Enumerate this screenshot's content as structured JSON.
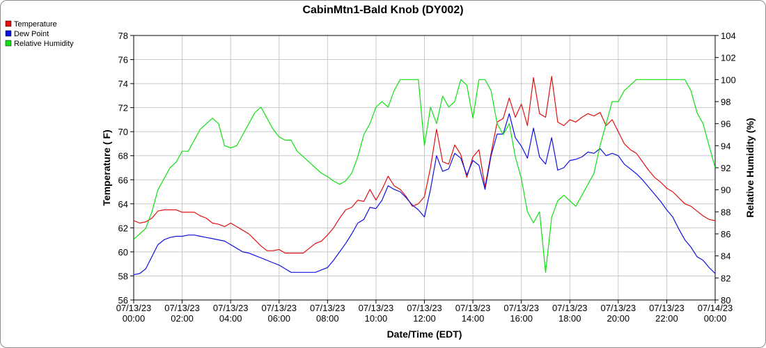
{
  "chart_data": {
    "type": "line",
    "title": "CabinMtn1-Bald Knob (DY002)",
    "xlabel": "Date/Time (EDT)",
    "ylabel": "Temperature ( F)",
    "y2label": "Relative Humidity (%)",
    "ylim": [
      56,
      78
    ],
    "y2lim": [
      80,
      104
    ],
    "yticks": [
      "56",
      "58",
      "60",
      "62",
      "64",
      "66",
      "68",
      "70",
      "72",
      "74",
      "76",
      "78"
    ],
    "y2ticks": [
      "80",
      "82",
      "84",
      "86",
      "88",
      "90",
      "92",
      "94",
      "96",
      "98",
      "100",
      "102",
      "104"
    ],
    "xlim": [
      0,
      24
    ],
    "xticks": [
      {
        "hour": 0,
        "date": "07/13/23",
        "time": "00:00"
      },
      {
        "hour": 2,
        "date": "07/13/23",
        "time": "02:00"
      },
      {
        "hour": 4,
        "date": "07/13/23",
        "time": "04:00"
      },
      {
        "hour": 6,
        "date": "07/13/23",
        "time": "06:00"
      },
      {
        "hour": 8,
        "date": "07/13/23",
        "time": "08:00"
      },
      {
        "hour": 10,
        "date": "07/13/23",
        "time": "10:00"
      },
      {
        "hour": 12,
        "date": "07/13/23",
        "time": "12:00"
      },
      {
        "hour": 14,
        "date": "07/13/23",
        "time": "14:00"
      },
      {
        "hour": 16,
        "date": "07/13/23",
        "time": "16:00"
      },
      {
        "hour": 18,
        "date": "07/13/23",
        "time": "18:00"
      },
      {
        "hour": 20,
        "date": "07/13/23",
        "time": "20:00"
      },
      {
        "hour": 22,
        "date": "07/13/23",
        "time": "22:00"
      },
      {
        "hour": 24,
        "date": "07/14/23",
        "time": "00:00"
      }
    ],
    "grid": true,
    "legend_position": "top-left",
    "series": [
      {
        "name": "Temperature",
        "color": "#e01010",
        "axis": "left",
        "points": [
          [
            0,
            62.6
          ],
          [
            0.25,
            62.4
          ],
          [
            0.5,
            62.5
          ],
          [
            0.75,
            62.8
          ],
          [
            1,
            63.4
          ],
          [
            1.25,
            63.5
          ],
          [
            1.5,
            63.5
          ],
          [
            1.75,
            63.5
          ],
          [
            2,
            63.3
          ],
          [
            2.25,
            63.3
          ],
          [
            2.5,
            63.3
          ],
          [
            2.75,
            63.0
          ],
          [
            3,
            62.8
          ],
          [
            3.25,
            62.4
          ],
          [
            3.5,
            62.3
          ],
          [
            3.75,
            62.1
          ],
          [
            4,
            62.4
          ],
          [
            4.25,
            62.1
          ],
          [
            4.5,
            61.8
          ],
          [
            4.75,
            61.5
          ],
          [
            5,
            61.0
          ],
          [
            5.25,
            60.5
          ],
          [
            5.5,
            60.1
          ],
          [
            5.75,
            60.1
          ],
          [
            6,
            60.2
          ],
          [
            6.25,
            59.9
          ],
          [
            6.5,
            59.9
          ],
          [
            6.75,
            59.9
          ],
          [
            7,
            59.9
          ],
          [
            7.25,
            60.3
          ],
          [
            7.5,
            60.7
          ],
          [
            7.75,
            60.9
          ],
          [
            8,
            61.4
          ],
          [
            8.25,
            62.0
          ],
          [
            8.5,
            62.8
          ],
          [
            8.75,
            63.5
          ],
          [
            9,
            63.7
          ],
          [
            9.25,
            64.3
          ],
          [
            9.5,
            64.2
          ],
          [
            9.75,
            65.2
          ],
          [
            10,
            64.3
          ],
          [
            10.25,
            65.2
          ],
          [
            10.5,
            66.3
          ],
          [
            10.75,
            65.5
          ],
          [
            11,
            65.2
          ],
          [
            11.25,
            64.6
          ],
          [
            11.5,
            63.8
          ],
          [
            11.75,
            64.0
          ],
          [
            12,
            64.6
          ],
          [
            12.25,
            67.0
          ],
          [
            12.5,
            70.2
          ],
          [
            12.75,
            67.5
          ],
          [
            13,
            67.3
          ],
          [
            13.25,
            68.9
          ],
          [
            13.5,
            68.1
          ],
          [
            13.75,
            66.2
          ],
          [
            14,
            67.9
          ],
          [
            14.25,
            68.5
          ],
          [
            14.5,
            65.4
          ],
          [
            14.75,
            68.2
          ],
          [
            15,
            70.8
          ],
          [
            15.25,
            71.1
          ],
          [
            15.5,
            72.8
          ],
          [
            15.75,
            71.2
          ],
          [
            16,
            72.3
          ],
          [
            16.25,
            70.5
          ],
          [
            16.5,
            74.5
          ],
          [
            16.75,
            71.5
          ],
          [
            17,
            71.2
          ],
          [
            17.25,
            74.6
          ],
          [
            17.5,
            70.8
          ],
          [
            17.75,
            70.5
          ],
          [
            18,
            71.0
          ],
          [
            18.25,
            70.8
          ],
          [
            18.5,
            71.2
          ],
          [
            18.75,
            71.5
          ],
          [
            19,
            71.3
          ],
          [
            19.25,
            71.6
          ],
          [
            19.5,
            70.5
          ],
          [
            19.75,
            71.0
          ],
          [
            20,
            70.0
          ],
          [
            20.25,
            69.0
          ],
          [
            20.5,
            68.5
          ],
          [
            20.75,
            68.2
          ],
          [
            21,
            67.5
          ],
          [
            21.25,
            66.8
          ],
          [
            21.5,
            66.2
          ],
          [
            21.75,
            65.8
          ],
          [
            22,
            65.3
          ],
          [
            22.25,
            65.0
          ],
          [
            22.5,
            64.5
          ],
          [
            22.75,
            64.0
          ],
          [
            23,
            63.8
          ],
          [
            23.25,
            63.4
          ],
          [
            23.5,
            63.0
          ],
          [
            23.75,
            62.7
          ],
          [
            24,
            62.6
          ]
        ]
      },
      {
        "name": "Dew Point",
        "color": "#1010e0",
        "axis": "left",
        "points": [
          [
            0,
            58.1
          ],
          [
            0.25,
            58.2
          ],
          [
            0.5,
            58.6
          ],
          [
            0.75,
            59.6
          ],
          [
            1,
            60.6
          ],
          [
            1.25,
            61.0
          ],
          [
            1.5,
            61.2
          ],
          [
            1.75,
            61.3
          ],
          [
            2,
            61.3
          ],
          [
            2.25,
            61.4
          ],
          [
            2.5,
            61.4
          ],
          [
            2.75,
            61.3
          ],
          [
            3,
            61.2
          ],
          [
            3.25,
            61.1
          ],
          [
            3.5,
            61.0
          ],
          [
            3.75,
            60.9
          ],
          [
            4,
            60.6
          ],
          [
            4.25,
            60.3
          ],
          [
            4.5,
            60.0
          ],
          [
            4.75,
            59.9
          ],
          [
            5,
            59.7
          ],
          [
            5.25,
            59.5
          ],
          [
            5.5,
            59.3
          ],
          [
            5.75,
            59.1
          ],
          [
            6,
            58.9
          ],
          [
            6.25,
            58.6
          ],
          [
            6.5,
            58.3
          ],
          [
            6.75,
            58.3
          ],
          [
            7,
            58.3
          ],
          [
            7.25,
            58.3
          ],
          [
            7.5,
            58.3
          ],
          [
            7.75,
            58.5
          ],
          [
            8,
            58.7
          ],
          [
            8.25,
            59.3
          ],
          [
            8.5,
            60.0
          ],
          [
            8.75,
            60.7
          ],
          [
            9,
            61.5
          ],
          [
            9.25,
            62.4
          ],
          [
            9.5,
            62.7
          ],
          [
            9.75,
            63.7
          ],
          [
            10,
            63.6
          ],
          [
            10.25,
            64.3
          ],
          [
            10.5,
            65.5
          ],
          [
            10.75,
            65.2
          ],
          [
            11,
            65.0
          ],
          [
            11.25,
            64.5
          ],
          [
            11.5,
            63.9
          ],
          [
            11.75,
            63.5
          ],
          [
            12,
            62.9
          ],
          [
            12.25,
            65.2
          ],
          [
            12.5,
            68.0
          ],
          [
            12.75,
            66.7
          ],
          [
            13,
            66.9
          ],
          [
            13.25,
            68.2
          ],
          [
            13.5,
            67.8
          ],
          [
            13.75,
            66.4
          ],
          [
            14,
            67.6
          ],
          [
            14.25,
            67.2
          ],
          [
            14.5,
            65.2
          ],
          [
            14.75,
            68.0
          ],
          [
            15,
            69.8
          ],
          [
            15.25,
            69.8
          ],
          [
            15.5,
            71.5
          ],
          [
            15.75,
            69.5
          ],
          [
            16,
            68.8
          ],
          [
            16.25,
            67.8
          ],
          [
            16.5,
            70.3
          ],
          [
            16.75,
            67.9
          ],
          [
            17,
            67.3
          ],
          [
            17.25,
            69.5
          ],
          [
            17.5,
            66.8
          ],
          [
            17.75,
            67.0
          ],
          [
            18,
            67.6
          ],
          [
            18.25,
            67.7
          ],
          [
            18.5,
            67.9
          ],
          [
            18.75,
            68.3
          ],
          [
            19,
            68.2
          ],
          [
            19.25,
            68.6
          ],
          [
            19.5,
            68.0
          ],
          [
            19.75,
            68.2
          ],
          [
            20,
            68.0
          ],
          [
            20.25,
            67.3
          ],
          [
            20.5,
            66.9
          ],
          [
            20.75,
            66.5
          ],
          [
            21,
            66.0
          ],
          [
            21.25,
            65.4
          ],
          [
            21.5,
            64.8
          ],
          [
            21.75,
            64.2
          ],
          [
            22,
            63.5
          ],
          [
            22.25,
            62.9
          ],
          [
            22.5,
            61.9
          ],
          [
            22.75,
            61.0
          ],
          [
            23,
            60.4
          ],
          [
            23.25,
            59.6
          ],
          [
            23.5,
            59.3
          ],
          [
            23.75,
            58.7
          ],
          [
            24,
            58.2
          ]
        ]
      },
      {
        "name": "Relative Humidity",
        "color": "#10e010",
        "axis": "right",
        "points": [
          [
            0,
            85.5
          ],
          [
            0.25,
            86.0
          ],
          [
            0.5,
            86.5
          ],
          [
            0.75,
            88.0
          ],
          [
            1,
            90.0
          ],
          [
            1.25,
            91.0
          ],
          [
            1.5,
            92.0
          ],
          [
            1.75,
            92.5
          ],
          [
            2,
            93.5
          ],
          [
            2.25,
            93.5
          ],
          [
            2.5,
            94.5
          ],
          [
            2.75,
            95.5
          ],
          [
            3,
            96.0
          ],
          [
            3.25,
            96.5
          ],
          [
            3.5,
            96.0
          ],
          [
            3.75,
            94.0
          ],
          [
            4,
            93.8
          ],
          [
            4.25,
            94.0
          ],
          [
            4.5,
            95.0
          ],
          [
            4.75,
            96.0
          ],
          [
            5,
            97.0
          ],
          [
            5.25,
            97.5
          ],
          [
            5.5,
            96.5
          ],
          [
            5.75,
            95.5
          ],
          [
            6,
            94.8
          ],
          [
            6.25,
            94.5
          ],
          [
            6.5,
            94.5
          ],
          [
            6.75,
            93.5
          ],
          [
            7,
            93.0
          ],
          [
            7.25,
            92.5
          ],
          [
            7.5,
            92.0
          ],
          [
            7.75,
            91.5
          ],
          [
            8,
            91.2
          ],
          [
            8.25,
            90.8
          ],
          [
            8.5,
            90.5
          ],
          [
            8.75,
            90.8
          ],
          [
            9,
            91.5
          ],
          [
            9.25,
            93.0
          ],
          [
            9.5,
            95.0
          ],
          [
            9.75,
            96.0
          ],
          [
            10,
            97.5
          ],
          [
            10.25,
            98.0
          ],
          [
            10.5,
            97.5
          ],
          [
            10.75,
            99.0
          ],
          [
            11,
            100.0
          ],
          [
            11.25,
            100.0
          ],
          [
            11.5,
            100.0
          ],
          [
            11.75,
            100.0
          ],
          [
            12,
            94.0
          ],
          [
            12.25,
            97.5
          ],
          [
            12.5,
            96.0
          ],
          [
            12.75,
            98.5
          ],
          [
            13,
            97.5
          ],
          [
            13.25,
            98.0
          ],
          [
            13.5,
            100.0
          ],
          [
            13.75,
            99.5
          ],
          [
            14,
            96.5
          ],
          [
            14.25,
            100.0
          ],
          [
            14.5,
            100.0
          ],
          [
            14.75,
            99.0
          ],
          [
            15,
            96.0
          ],
          [
            15.25,
            95.0
          ],
          [
            15.5,
            96.0
          ],
          [
            15.75,
            93.0
          ],
          [
            16,
            91.0
          ],
          [
            16.25,
            88.0
          ],
          [
            16.5,
            87.0
          ],
          [
            16.75,
            88.0
          ],
          [
            17,
            82.5
          ],
          [
            17.25,
            87.5
          ],
          [
            17.5,
            89.0
          ],
          [
            17.75,
            89.5
          ],
          [
            18,
            89.0
          ],
          [
            18.25,
            88.5
          ],
          [
            18.5,
            89.5
          ],
          [
            18.75,
            90.5
          ],
          [
            19,
            91.5
          ],
          [
            19.25,
            94.0
          ],
          [
            19.5,
            96.0
          ],
          [
            19.75,
            98.0
          ],
          [
            20,
            98.0
          ],
          [
            20.25,
            99.0
          ],
          [
            20.5,
            99.5
          ],
          [
            20.75,
            100.0
          ],
          [
            21,
            100.0
          ],
          [
            21.25,
            100.0
          ],
          [
            21.5,
            100.0
          ],
          [
            21.75,
            100.0
          ],
          [
            22,
            100.0
          ],
          [
            22.25,
            100.0
          ],
          [
            22.5,
            100.0
          ],
          [
            22.75,
            100.0
          ],
          [
            23,
            99.0
          ],
          [
            23.25,
            97.0
          ],
          [
            23.5,
            96.0
          ],
          [
            23.75,
            94.0
          ],
          [
            24,
            92.0
          ]
        ]
      }
    ]
  }
}
